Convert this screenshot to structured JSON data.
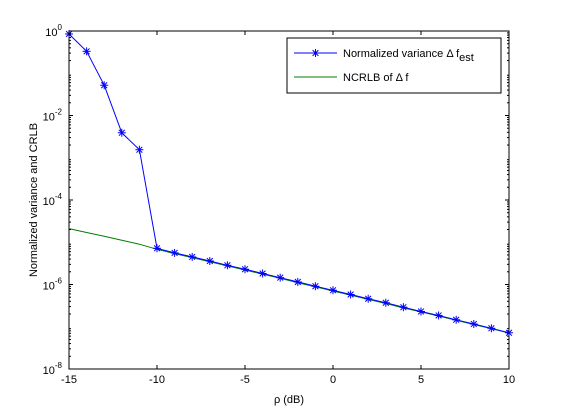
{
  "colors": {
    "series_1": "#0000ff",
    "series_2": "#007f00",
    "background": "#ffffff",
    "axes": "#000000"
  },
  "chart_data": {
    "type": "line",
    "title": "",
    "xlabel": "ρ (dB)",
    "ylabel": "Normalized variance and CRLB",
    "xlim": [
      -15,
      10
    ],
    "ylim": [
      1e-08,
      1
    ],
    "yscale": "log",
    "grid": false,
    "legend_position": "top-right",
    "x_ticks": [
      -15,
      -10,
      -5,
      0,
      5,
      10
    ],
    "x_tick_labels": [
      "-15",
      "-10",
      "-5",
      "0",
      "5",
      "10"
    ],
    "y_tick_exponents": [
      -8,
      -6,
      -4,
      -2,
      0
    ],
    "y_tick_base": "10",
    "series": [
      {
        "name_prefix": "Normalized variance Δ f",
        "name_subscript": "est",
        "color": "#0000ff",
        "marker": "asterisk",
        "x": [
          -15,
          -14,
          -13,
          -12,
          -11,
          -10,
          -9,
          -8,
          -7,
          -6,
          -5,
          -4,
          -3,
          -2,
          -1,
          0,
          1,
          2,
          3,
          4,
          5,
          6,
          7,
          8,
          9,
          10
        ],
        "y": [
          0.85,
          0.33,
          0.052,
          0.0039,
          0.00155,
          7.2e-06,
          5.6e-06,
          4.5e-06,
          3.6e-06,
          2.85e-06,
          2.3e-06,
          1.82e-06,
          1.45e-06,
          1.15e-06,
          9.1e-07,
          7.3e-07,
          5.8e-07,
          4.6e-07,
          3.7e-07,
          2.9e-07,
          2.3e-07,
          1.85e-07,
          1.46e-07,
          1.16e-07,
          9.2e-08,
          7.2e-08
        ]
      },
      {
        "name": "NCRLB of Δ f",
        "color": "#007f00",
        "marker": "none",
        "x": [
          -15,
          -14,
          -13,
          -12,
          -11,
          -10,
          -9,
          -8,
          -7,
          -6,
          -5,
          -4,
          -3,
          -2,
          -1,
          0,
          1,
          2,
          3,
          4,
          5,
          6,
          7,
          8,
          9,
          10
        ],
        "y": [
          2.1e-05,
          1.7e-05,
          1.38e-05,
          1.12e-05,
          9e-06,
          6.8e-06,
          5.4e-06,
          4.3e-06,
          3.45e-06,
          2.75e-06,
          2.2e-06,
          1.75e-06,
          1.4e-06,
          1.1e-06,
          8.8e-07,
          7e-07,
          5.6e-07,
          4.45e-07,
          3.55e-07,
          2.8e-07,
          2.25e-07,
          1.8e-07,
          1.42e-07,
          1.13e-07,
          9e-08,
          7.1e-08
        ]
      }
    ]
  }
}
